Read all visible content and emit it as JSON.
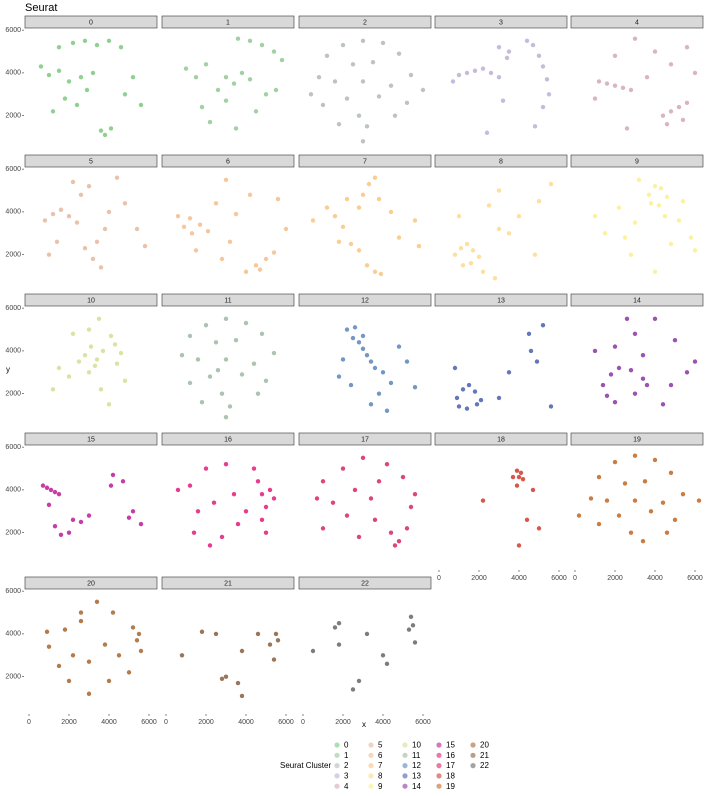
{
  "chart_data": {
    "type": "scatter",
    "title": "Seurat",
    "x_label": "x",
    "y_label": "y",
    "legend_title": "Seurat Cluster",
    "xlim": [
      -200,
      6400
    ],
    "ylim": [
      300,
      6100
    ],
    "xticks": [
      0,
      2000,
      4000,
      6000
    ],
    "yticks": [
      2000,
      4000,
      6000
    ],
    "facets": [
      {
        "name": "0",
        "color": "#7dc87d",
        "x": [
          1500,
          2200,
          2800,
          3400,
          4000,
          4600,
          1000,
          1500,
          2000,
          2600,
          3200,
          1800,
          2400,
          3600,
          3800,
          4100,
          5200,
          5600,
          4800,
          600,
          1200,
          2900
        ],
        "y": [
          5200,
          5400,
          5500,
          5300,
          5500,
          5200,
          3900,
          4100,
          3600,
          3800,
          4000,
          2800,
          2500,
          1300,
          1100,
          1400,
          3800,
          2500,
          3000,
          4300,
          2200,
          3200
        ]
      },
      {
        "name": "1",
        "color": "#93c893",
        "x": [
          3600,
          4200,
          4800,
          5400,
          5800,
          3000,
          3400,
          3800,
          4200,
          2600,
          3000,
          2000,
          1500,
          1000,
          4500,
          5000,
          2200,
          3500,
          5500,
          1800
        ],
        "y": [
          5600,
          5500,
          5300,
          5000,
          4600,
          3800,
          3500,
          4000,
          3700,
          3200,
          2700,
          4400,
          3800,
          4200,
          2200,
          3000,
          1700,
          1400,
          3200,
          2400
        ]
      },
      {
        "name": "2",
        "color": "#b0bab7",
        "x": [
          3000,
          2000,
          4000,
          1200,
          4800,
          2500,
          3500,
          800,
          5400,
          1600,
          3000,
          4400,
          2200,
          3800,
          1000,
          5200,
          2800,
          3200,
          1800,
          4600,
          3000,
          6000,
          400
        ],
        "y": [
          5500,
          5300,
          5400,
          4800,
          4900,
          4400,
          4500,
          3800,
          3900,
          3600,
          3600,
          3400,
          2800,
          2900,
          2500,
          2600,
          2000,
          1500,
          1600,
          2000,
          800,
          3200,
          3000
        ]
      },
      {
        "name": "3",
        "color": "#bcaed7",
        "x": [
          700,
          1000,
          1400,
          1800,
          2200,
          2600,
          3000,
          3400,
          3500,
          4400,
          4700,
          5000,
          5200,
          5400,
          5500,
          5200,
          4800,
          3000,
          3200,
          2400
        ],
        "y": [
          3600,
          3900,
          4000,
          4100,
          4200,
          4000,
          3800,
          4700,
          5000,
          5500,
          5300,
          4800,
          4300,
          3700,
          3000,
          2400,
          1500,
          5200,
          2700,
          1200
        ]
      },
      {
        "name": "4",
        "color": "#d2a8b8",
        "x": [
          1200,
          1600,
          2000,
          2400,
          2800,
          4400,
          4800,
          5200,
          5600,
          4600,
          5400,
          3000,
          2000,
          4000,
          5600,
          1000,
          3600,
          6000,
          2600,
          4800
        ],
        "y": [
          3600,
          3500,
          3400,
          3300,
          3200,
          2000,
          2200,
          2400,
          2600,
          1600,
          1800,
          5600,
          4800,
          5000,
          5200,
          2800,
          3800,
          4000,
          1400,
          4400
        ]
      },
      {
        "name": "5",
        "color": "#e6b69c",
        "x": [
          800,
          1200,
          1600,
          2000,
          2400,
          2800,
          3200,
          3600,
          2600,
          3000,
          3400,
          4000,
          4800,
          5400,
          1400,
          2200,
          3800,
          5800,
          1000,
          4400
        ],
        "y": [
          3600,
          3900,
          4100,
          3800,
          3500,
          2300,
          1800,
          1400,
          4800,
          5200,
          2600,
          4000,
          4400,
          3200,
          2600,
          5400,
          3200,
          2400,
          2000,
          5600
        ]
      },
      {
        "name": "6",
        "color": "#f5bd8c",
        "x": [
          900,
          1300,
          1700,
          2100,
          1200,
          4000,
          4500,
          5000,
          5400,
          4700,
          3000,
          2500,
          3500,
          5600,
          6000,
          1500,
          2800,
          4200,
          600,
          3200
        ],
        "y": [
          3300,
          3000,
          3400,
          3100,
          3700,
          1200,
          1500,
          1800,
          2100,
          1300,
          5500,
          4400,
          3900,
          4600,
          3200,
          2200,
          1800,
          4800,
          3800,
          2600
        ]
      },
      {
        "name": "7",
        "color": "#f9c47e",
        "x": [
          3300,
          3600,
          3800,
          2800,
          3000,
          1200,
          1600,
          2000,
          2400,
          1800,
          2800,
          3200,
          3600,
          3900,
          4800,
          5600,
          5800,
          500,
          4400,
          2200
        ],
        "y": [
          5300,
          5600,
          4600,
          4200,
          4800,
          4200,
          3800,
          3300,
          2500,
          2600,
          2200,
          1500,
          1200,
          1100,
          2800,
          3600,
          2400,
          3600,
          4000,
          4600
        ]
      },
      {
        "name": "8",
        "color": "#fed98c",
        "x": [
          800,
          1100,
          1400,
          1700,
          2000,
          1200,
          1600,
          2200,
          3000,
          4000,
          5000,
          2500,
          3500,
          4800,
          5600,
          2800,
          1000,
          3000
        ],
        "y": [
          2000,
          2300,
          2500,
          2200,
          1900,
          1500,
          1600,
          1200,
          5000,
          3800,
          4500,
          4300,
          3000,
          2000,
          5300,
          900,
          3800,
          3200
        ]
      },
      {
        "name": "9",
        "color": "#fcef8e",
        "x": [
          3700,
          4000,
          4300,
          4600,
          4200,
          3800,
          4500,
          5200,
          5800,
          3000,
          2200,
          1500,
          2800,
          5400,
          6000,
          4000,
          3200,
          1000,
          2500,
          4800
        ],
        "y": [
          4800,
          5200,
          5100,
          4700,
          4300,
          4400,
          3800,
          3600,
          2800,
          3500,
          4200,
          3000,
          2000,
          4500,
          2200,
          1200,
          5500,
          3800,
          2800,
          2500
        ]
      },
      {
        "name": "10",
        "color": "#d2df92",
        "x": [
          2800,
          3100,
          3400,
          3700,
          4100,
          4300,
          4600,
          3000,
          3300,
          2500,
          2000,
          1500,
          3600,
          4800,
          4000,
          3500,
          2200,
          3000,
          1200,
          4400
        ],
        "y": [
          3800,
          4200,
          3600,
          4000,
          4700,
          4300,
          3900,
          3000,
          3300,
          3500,
          2800,
          3200,
          2200,
          2600,
          1500,
          5500,
          4800,
          5000,
          2200,
          3400
        ]
      },
      {
        "name": "11",
        "color": "#9db8a2",
        "x": [
          3000,
          2000,
          4000,
          1200,
          4800,
          2500,
          3500,
          800,
          5400,
          1600,
          3000,
          4400,
          2200,
          3800,
          1200,
          5000,
          2800,
          3200,
          1800,
          4600,
          3000,
          2600
        ],
        "y": [
          5500,
          5200,
          5300,
          4700,
          4800,
          4400,
          4500,
          3800,
          3900,
          3600,
          3600,
          3400,
          2800,
          2900,
          2500,
          2600,
          2000,
          1400,
          1600,
          2000,
          900,
          3100
        ]
      },
      {
        "name": "12",
        "color": "#5a86ba",
        "x": [
          2200,
          2500,
          2800,
          3000,
          3200,
          3400,
          3600,
          2600,
          3000,
          4000,
          4400,
          3800,
          5200,
          4800,
          1800,
          2400,
          3400,
          5600,
          2000,
          4200
        ],
        "y": [
          5000,
          4600,
          4400,
          4100,
          3800,
          3500,
          3200,
          5100,
          4700,
          3000,
          2500,
          2000,
          3500,
          4200,
          2800,
          2400,
          1500,
          2300,
          3600,
          1200
        ]
      },
      {
        "name": "13",
        "color": "#4a5fae",
        "x": [
          900,
          1200,
          1500,
          1800,
          2100,
          1000,
          1400,
          1900,
          5200,
          4600,
          4900,
          3500,
          800,
          5600,
          3000,
          4500
        ],
        "y": [
          1800,
          2200,
          2400,
          2100,
          1700,
          1400,
          1300,
          1500,
          5200,
          4000,
          3500,
          3000,
          3200,
          1400,
          1800,
          4800
        ]
      },
      {
        "name": "14",
        "color": "#8a34a4",
        "x": [
          1400,
          1800,
          2200,
          2800,
          3400,
          1600,
          2000,
          3000,
          3600,
          4000,
          5000,
          5600,
          2000,
          3000,
          4400,
          1000,
          2600,
          4800,
          6000,
          3400
        ],
        "y": [
          2400,
          2900,
          3200,
          3100,
          2700,
          1900,
          1600,
          2000,
          2400,
          5500,
          4500,
          3000,
          4200,
          4800,
          1500,
          4000,
          5500,
          2400,
          3500,
          3800
        ]
      },
      {
        "name": "15",
        "color": "#bb1b97",
        "x": [
          700,
          900,
          1100,
          1300,
          1500,
          2200,
          2600,
          2000,
          1300,
          1600,
          4100,
          4200,
          4700,
          5000,
          5200,
          5600,
          3000,
          1000
        ],
        "y": [
          4200,
          4100,
          4000,
          3900,
          3800,
          2600,
          2500,
          2000,
          2300,
          1900,
          4200,
          4700,
          4400,
          2700,
          3000,
          2400,
          2800,
          3300
        ]
      },
      {
        "name": "16",
        "color": "#e2197a",
        "x": [
          4600,
          4800,
          5000,
          5200,
          4800,
          5000,
          4400,
          3000,
          2000,
          1200,
          1600,
          2400,
          3400,
          4000,
          1400,
          2800,
          2200,
          3600,
          5400,
          600
        ],
        "y": [
          4400,
          3800,
          3200,
          4000,
          2600,
          2000,
          5000,
          5200,
          5000,
          4200,
          3000,
          3400,
          3800,
          3000,
          2000,
          1800,
          1400,
          2400,
          3600,
          4000
        ]
      },
      {
        "name": "17",
        "color": "#d6246a",
        "x": [
          3000,
          2000,
          4200,
          1000,
          5000,
          2600,
          3400,
          1500,
          5600,
          2200,
          3600,
          4400,
          4800,
          5200,
          4600,
          1000,
          2800,
          3800,
          5400,
          700
        ],
        "y": [
          5500,
          5000,
          5200,
          4400,
          4600,
          4000,
          3600,
          3400,
          3800,
          2800,
          2600,
          2000,
          1600,
          2200,
          1400,
          2200,
          1800,
          4400,
          3200,
          3600
        ]
      },
      {
        "name": "18",
        "color": "#cf3a2e",
        "x": [
          3700,
          3900,
          4100,
          4200,
          3900,
          4000,
          4700,
          2200,
          5000,
          4400,
          4000
        ],
        "y": [
          4600,
          4900,
          4800,
          4500,
          4200,
          4600,
          4000,
          3500,
          2200,
          2600,
          1400
        ]
      },
      {
        "name": "19",
        "color": "#bf6623",
        "x": [
          3000,
          2000,
          4000,
          1200,
          4800,
          2500,
          3500,
          800,
          5400,
          1600,
          3000,
          4400,
          2200,
          3800,
          1200,
          5000,
          2800,
          3400,
          4600,
          6200,
          200
        ],
        "y": [
          5600,
          5300,
          5400,
          4600,
          4800,
          4300,
          4400,
          3600,
          3800,
          3500,
          3500,
          3400,
          2800,
          3000,
          2400,
          2600,
          2000,
          1600,
          2000,
          3500,
          2800
        ]
      },
      {
        "name": "20",
        "color": "#a8652b",
        "x": [
          1000,
          1800,
          2600,
          3400,
          4200,
          5200,
          5400,
          5600,
          5500,
          1500,
          2200,
          3000,
          3800,
          4500,
          900,
          2000,
          3000,
          4000,
          5000,
          2600
        ],
        "y": [
          3400,
          4200,
          5000,
          5500,
          5000,
          4300,
          3700,
          3200,
          4000,
          2500,
          3000,
          2700,
          3500,
          3000,
          4100,
          1800,
          1200,
          1800,
          2200,
          4600
        ]
      },
      {
        "name": "21",
        "color": "#8a5d3b",
        "x": [
          800,
          1800,
          3000,
          3800,
          4600,
          5200,
          5500,
          5600,
          2500,
          3800,
          2800,
          3600,
          5400
        ],
        "y": [
          3000,
          4100,
          2000,
          3200,
          4000,
          3500,
          4000,
          3700,
          4000,
          1100,
          1900,
          1700,
          2800
        ]
      },
      {
        "name": "22",
        "color": "#666666",
        "x": [
          500,
          1600,
          1800,
          2500,
          3200,
          4000,
          5300,
          5500,
          5600,
          4200,
          1800,
          2800,
          5400
        ],
        "y": [
          3200,
          4300,
          4500,
          1400,
          4000,
          3000,
          4200,
          4400,
          3600,
          2600,
          3500,
          1800,
          4800
        ]
      }
    ]
  }
}
